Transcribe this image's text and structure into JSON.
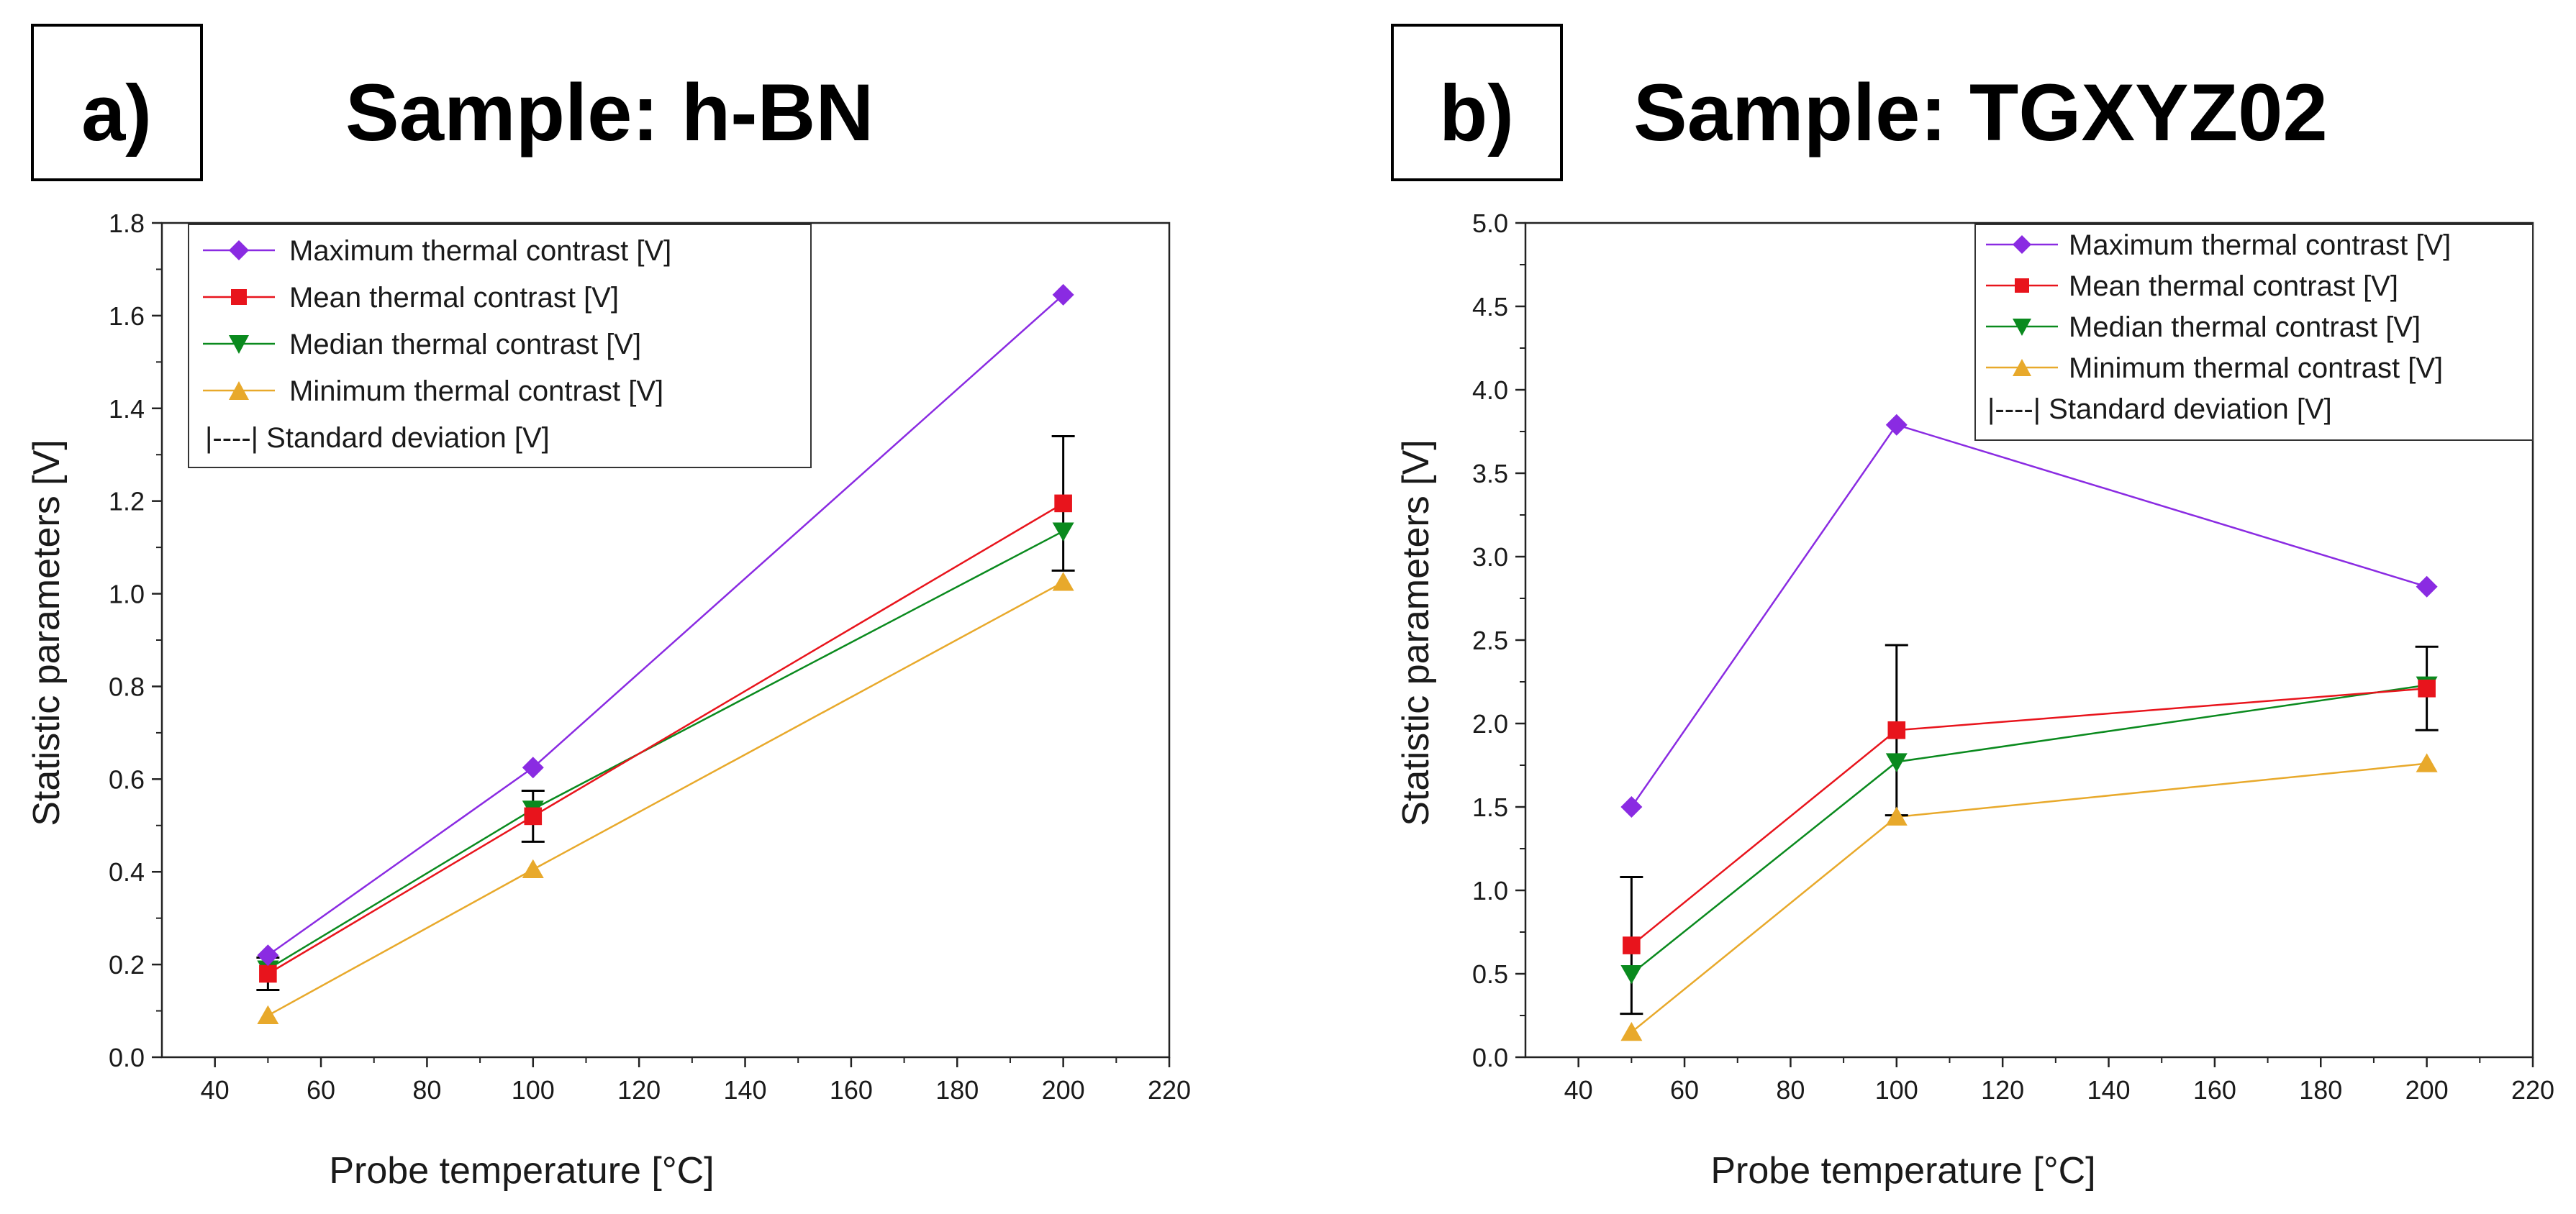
{
  "chart_data": [
    {
      "type": "line",
      "panel_label": "a)",
      "title": "Sample: h-BN",
      "xlabel": "Probe temperature [°C]",
      "ylabel": "Statistic parameters [V]",
      "xlim": [
        30,
        220
      ],
      "ylim": [
        0,
        1.8
      ],
      "xticks": [
        40,
        60,
        80,
        100,
        120,
        140,
        160,
        180,
        200,
        220
      ],
      "yticks": [
        0.0,
        0.2,
        0.4,
        0.6,
        0.8,
        1.0,
        1.2,
        1.4,
        1.6,
        1.8
      ],
      "ytick_decimals": 1,
      "x": [
        50,
        100,
        200
      ],
      "series": [
        {
          "name": "Maximum thermal contrast [V]",
          "values": [
            0.22,
            0.625,
            1.645
          ],
          "color": "#8a2be2",
          "marker": "diamond"
        },
        {
          "name": "Mean thermal contrast [V]",
          "values": [
            0.18,
            0.52,
            1.195
          ],
          "color": "#e8141c",
          "marker": "square"
        },
        {
          "name": "Median thermal contrast [V]",
          "values": [
            0.19,
            0.535,
            1.135
          ],
          "color": "#0a8a1e",
          "marker": "triangle-down"
        },
        {
          "name": "Minimum thermal contrast [V]",
          "values": [
            0.09,
            0.405,
            1.025
          ],
          "color": "#e8a92b",
          "marker": "triangle-up"
        }
      ],
      "error_bars": {
        "name": "|----| Standard deviation [V]",
        "series": "Mean thermal contrast [V]",
        "plus_minus": [
          0.035,
          0.055,
          0.145
        ],
        "color": "#000000"
      },
      "legend": "top-left"
    },
    {
      "type": "line",
      "panel_label": "b)",
      "title": "Sample: TGXYZ02",
      "xlabel": "Probe temperature [°C]",
      "ylabel": "Statistic parameters [V]",
      "xlim": [
        30,
        220
      ],
      "ylim": [
        0,
        5.0
      ],
      "xticks": [
        40,
        60,
        80,
        100,
        120,
        140,
        160,
        180,
        200,
        220
      ],
      "yticks": [
        0.0,
        0.5,
        1.0,
        1.5,
        2.0,
        2.5,
        3.0,
        3.5,
        4.0,
        4.5,
        5.0
      ],
      "ytick_decimals": 1,
      "x": [
        50,
        100,
        200
      ],
      "series": [
        {
          "name": "Maximum thermal contrast [V]",
          "values": [
            1.5,
            3.79,
            2.82
          ],
          "color": "#8a2be2",
          "marker": "diamond"
        },
        {
          "name": "Mean thermal contrast [V]",
          "values": [
            0.67,
            1.96,
            2.21
          ],
          "color": "#e8141c",
          "marker": "square"
        },
        {
          "name": "Median thermal contrast [V]",
          "values": [
            0.5,
            1.77,
            2.23
          ],
          "color": "#0a8a1e",
          "marker": "triangle-down"
        },
        {
          "name": "Minimum thermal contrast [V]",
          "values": [
            0.15,
            1.44,
            1.76
          ],
          "color": "#e8a92b",
          "marker": "triangle-up"
        }
      ],
      "error_bars": {
        "name": "|----| Standard deviation [V]",
        "series": "Mean thermal contrast [V]",
        "plus_minus": [
          0.41,
          0.51,
          0.25
        ],
        "color": "#000000"
      },
      "legend": "top-right"
    }
  ]
}
